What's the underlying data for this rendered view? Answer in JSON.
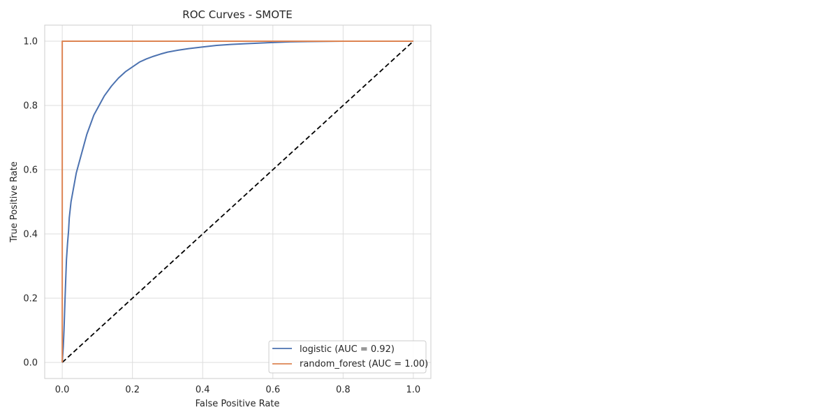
{
  "chart_data": {
    "type": "line",
    "title": "ROC Curves - SMOTE",
    "xlabel": "False Positive Rate",
    "ylabel": "True Positive Rate",
    "xlim": [
      -0.05,
      1.05
    ],
    "ylim": [
      -0.05,
      1.05
    ],
    "xticks": [
      0.0,
      0.2,
      0.4,
      0.6,
      0.8,
      1.0
    ],
    "yticks": [
      0.0,
      0.2,
      0.4,
      0.6,
      0.8,
      1.0
    ],
    "xtick_labels": [
      "0.0",
      "0.2",
      "0.4",
      "0.6",
      "0.8",
      "1.0"
    ],
    "ytick_labels": [
      "0.0",
      "0.2",
      "0.4",
      "0.6",
      "0.8",
      "1.0"
    ],
    "grid": true,
    "legend_position": "lower right",
    "series": [
      {
        "name": "logistic (AUC = 0.92)",
        "color": "#4c72b0",
        "style": "solid",
        "x": [
          0.0,
          0.003,
          0.005,
          0.008,
          0.01,
          0.012,
          0.015,
          0.018,
          0.02,
          0.025,
          0.03,
          0.035,
          0.04,
          0.045,
          0.05,
          0.055,
          0.06,
          0.07,
          0.08,
          0.09,
          0.1,
          0.11,
          0.12,
          0.14,
          0.16,
          0.18,
          0.2,
          0.22,
          0.24,
          0.26,
          0.28,
          0.3,
          0.33,
          0.36,
          0.4,
          0.44,
          0.48,
          0.52,
          0.56,
          0.6,
          0.65,
          0.7,
          0.8,
          0.9,
          1.0
        ],
        "y": [
          0.0,
          0.05,
          0.1,
          0.2,
          0.26,
          0.32,
          0.37,
          0.41,
          0.45,
          0.5,
          0.53,
          0.56,
          0.59,
          0.61,
          0.63,
          0.65,
          0.67,
          0.71,
          0.74,
          0.77,
          0.79,
          0.81,
          0.83,
          0.86,
          0.885,
          0.905,
          0.92,
          0.935,
          0.945,
          0.953,
          0.96,
          0.966,
          0.972,
          0.977,
          0.982,
          0.987,
          0.99,
          0.992,
          0.994,
          0.996,
          0.998,
          0.999,
          1.0,
          1.0,
          1.0
        ]
      },
      {
        "name": "random_forest (AUC = 1.00)",
        "color": "#dd8452",
        "style": "solid",
        "x": [
          0.0,
          0.0,
          1.0
        ],
        "y": [
          0.0,
          1.0,
          1.0
        ]
      },
      {
        "name": "",
        "color": "#000000",
        "style": "dashed",
        "x": [
          0.0,
          1.0
        ],
        "y": [
          0.0,
          1.0
        ]
      }
    ]
  }
}
